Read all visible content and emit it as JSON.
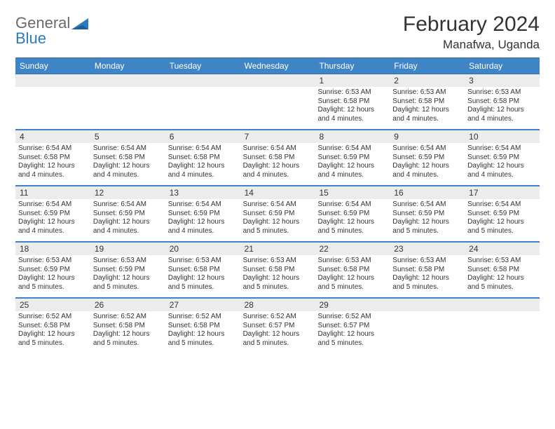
{
  "logo": {
    "text_a": "General",
    "text_b": "Blue"
  },
  "title": "February 2024",
  "subtitle": "Manafwa, Uganda",
  "colors": {
    "header_blue": "#3f85c6",
    "header_border": "#2f6ea8",
    "daynum_bg": "#ececec",
    "text": "#333333",
    "logo_gray": "#6a6a6a",
    "logo_blue": "#2a7ac0",
    "page_bg": "#ffffff"
  },
  "dow": [
    "Sunday",
    "Monday",
    "Tuesday",
    "Wednesday",
    "Thursday",
    "Friday",
    "Saturday"
  ],
  "weeks": [
    [
      {
        "day": "",
        "lines": []
      },
      {
        "day": "",
        "lines": []
      },
      {
        "day": "",
        "lines": []
      },
      {
        "day": "",
        "lines": []
      },
      {
        "day": "1",
        "lines": [
          "Sunrise: 6:53 AM",
          "Sunset: 6:58 PM",
          "Daylight: 12 hours",
          "and 4 minutes."
        ]
      },
      {
        "day": "2",
        "lines": [
          "Sunrise: 6:53 AM",
          "Sunset: 6:58 PM",
          "Daylight: 12 hours",
          "and 4 minutes."
        ]
      },
      {
        "day": "3",
        "lines": [
          "Sunrise: 6:53 AM",
          "Sunset: 6:58 PM",
          "Daylight: 12 hours",
          "and 4 minutes."
        ]
      }
    ],
    [
      {
        "day": "4",
        "lines": [
          "Sunrise: 6:54 AM",
          "Sunset: 6:58 PM",
          "Daylight: 12 hours",
          "and 4 minutes."
        ]
      },
      {
        "day": "5",
        "lines": [
          "Sunrise: 6:54 AM",
          "Sunset: 6:58 PM",
          "Daylight: 12 hours",
          "and 4 minutes."
        ]
      },
      {
        "day": "6",
        "lines": [
          "Sunrise: 6:54 AM",
          "Sunset: 6:58 PM",
          "Daylight: 12 hours",
          "and 4 minutes."
        ]
      },
      {
        "day": "7",
        "lines": [
          "Sunrise: 6:54 AM",
          "Sunset: 6:58 PM",
          "Daylight: 12 hours",
          "and 4 minutes."
        ]
      },
      {
        "day": "8",
        "lines": [
          "Sunrise: 6:54 AM",
          "Sunset: 6:59 PM",
          "Daylight: 12 hours",
          "and 4 minutes."
        ]
      },
      {
        "day": "9",
        "lines": [
          "Sunrise: 6:54 AM",
          "Sunset: 6:59 PM",
          "Daylight: 12 hours",
          "and 4 minutes."
        ]
      },
      {
        "day": "10",
        "lines": [
          "Sunrise: 6:54 AM",
          "Sunset: 6:59 PM",
          "Daylight: 12 hours",
          "and 4 minutes."
        ]
      }
    ],
    [
      {
        "day": "11",
        "lines": [
          "Sunrise: 6:54 AM",
          "Sunset: 6:59 PM",
          "Daylight: 12 hours",
          "and 4 minutes."
        ]
      },
      {
        "day": "12",
        "lines": [
          "Sunrise: 6:54 AM",
          "Sunset: 6:59 PM",
          "Daylight: 12 hours",
          "and 4 minutes."
        ]
      },
      {
        "day": "13",
        "lines": [
          "Sunrise: 6:54 AM",
          "Sunset: 6:59 PM",
          "Daylight: 12 hours",
          "and 4 minutes."
        ]
      },
      {
        "day": "14",
        "lines": [
          "Sunrise: 6:54 AM",
          "Sunset: 6:59 PM",
          "Daylight: 12 hours",
          "and 5 minutes."
        ]
      },
      {
        "day": "15",
        "lines": [
          "Sunrise: 6:54 AM",
          "Sunset: 6:59 PM",
          "Daylight: 12 hours",
          "and 5 minutes."
        ]
      },
      {
        "day": "16",
        "lines": [
          "Sunrise: 6:54 AM",
          "Sunset: 6:59 PM",
          "Daylight: 12 hours",
          "and 5 minutes."
        ]
      },
      {
        "day": "17",
        "lines": [
          "Sunrise: 6:54 AM",
          "Sunset: 6:59 PM",
          "Daylight: 12 hours",
          "and 5 minutes."
        ]
      }
    ],
    [
      {
        "day": "18",
        "lines": [
          "Sunrise: 6:53 AM",
          "Sunset: 6:59 PM",
          "Daylight: 12 hours",
          "and 5 minutes."
        ]
      },
      {
        "day": "19",
        "lines": [
          "Sunrise: 6:53 AM",
          "Sunset: 6:59 PM",
          "Daylight: 12 hours",
          "and 5 minutes."
        ]
      },
      {
        "day": "20",
        "lines": [
          "Sunrise: 6:53 AM",
          "Sunset: 6:58 PM",
          "Daylight: 12 hours",
          "and 5 minutes."
        ]
      },
      {
        "day": "21",
        "lines": [
          "Sunrise: 6:53 AM",
          "Sunset: 6:58 PM",
          "Daylight: 12 hours",
          "and 5 minutes."
        ]
      },
      {
        "day": "22",
        "lines": [
          "Sunrise: 6:53 AM",
          "Sunset: 6:58 PM",
          "Daylight: 12 hours",
          "and 5 minutes."
        ]
      },
      {
        "day": "23",
        "lines": [
          "Sunrise: 6:53 AM",
          "Sunset: 6:58 PM",
          "Daylight: 12 hours",
          "and 5 minutes."
        ]
      },
      {
        "day": "24",
        "lines": [
          "Sunrise: 6:53 AM",
          "Sunset: 6:58 PM",
          "Daylight: 12 hours",
          "and 5 minutes."
        ]
      }
    ],
    [
      {
        "day": "25",
        "lines": [
          "Sunrise: 6:52 AM",
          "Sunset: 6:58 PM",
          "Daylight: 12 hours",
          "and 5 minutes."
        ]
      },
      {
        "day": "26",
        "lines": [
          "Sunrise: 6:52 AM",
          "Sunset: 6:58 PM",
          "Daylight: 12 hours",
          "and 5 minutes."
        ]
      },
      {
        "day": "27",
        "lines": [
          "Sunrise: 6:52 AM",
          "Sunset: 6:58 PM",
          "Daylight: 12 hours",
          "and 5 minutes."
        ]
      },
      {
        "day": "28",
        "lines": [
          "Sunrise: 6:52 AM",
          "Sunset: 6:57 PM",
          "Daylight: 12 hours",
          "and 5 minutes."
        ]
      },
      {
        "day": "29",
        "lines": [
          "Sunrise: 6:52 AM",
          "Sunset: 6:57 PM",
          "Daylight: 12 hours",
          "and 5 minutes."
        ]
      },
      {
        "day": "",
        "lines": []
      },
      {
        "day": "",
        "lines": []
      }
    ]
  ]
}
